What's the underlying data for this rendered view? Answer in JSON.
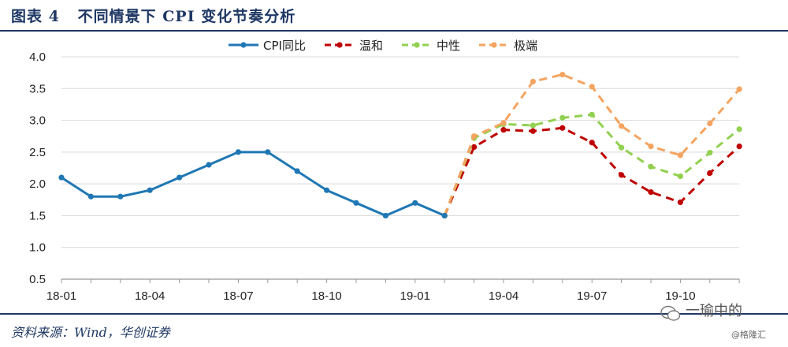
{
  "header": {
    "title": "图表 4   不同情景下 CPI 变化节奏分析"
  },
  "footer": {
    "source": "资料来源：Wind，华创证券"
  },
  "watermark": {
    "main": "一瑜中的",
    "small": "@格隆汇"
  },
  "chart_data": {
    "type": "line",
    "x_tick_labels": [
      "18-01",
      "18-04",
      "18-07",
      "18-10",
      "19-01",
      "19-04",
      "19-07",
      "19-10"
    ],
    "ylim": [
      0.5,
      4.0
    ],
    "y_ticks": [
      "0.5",
      "1.0",
      "1.5",
      "2.0",
      "2.5",
      "3.0",
      "3.5",
      "4.0"
    ],
    "grid": true,
    "legend_position": "top-center",
    "series": [
      {
        "name": "CPI同比",
        "color": "#1f77b4",
        "dashed": false,
        "x": [
          "2018-01",
          "2018-02",
          "2018-03",
          "2018-04",
          "2018-05",
          "2018-06",
          "2018-07",
          "2018-08",
          "2018-09",
          "2018-10",
          "2018-11",
          "2018-12",
          "2019-01",
          "2019-02"
        ],
        "values": [
          2.1,
          1.8,
          1.8,
          1.9,
          2.1,
          2.3,
          2.5,
          2.5,
          2.2,
          1.9,
          1.7,
          1.5,
          1.7,
          1.5
        ]
      },
      {
        "name": "温和",
        "color": "#c00000",
        "dashed": true,
        "x": [
          "2019-02",
          "2019-03",
          "2019-04",
          "2019-05",
          "2019-06",
          "2019-07",
          "2019-08",
          "2019-09",
          "2019-10",
          "2019-11",
          "2019-12"
        ],
        "values": [
          1.5,
          2.58,
          2.85,
          2.83,
          2.88,
          2.65,
          2.14,
          1.87,
          1.71,
          2.17,
          2.59
        ]
      },
      {
        "name": "中性",
        "color": "#92d050",
        "dashed": true,
        "x": [
          "2019-02",
          "2019-03",
          "2019-04",
          "2019-05",
          "2019-06",
          "2019-07",
          "2019-08",
          "2019-09",
          "2019-10",
          "2019-11",
          "2019-12"
        ],
        "values": [
          1.5,
          2.72,
          2.94,
          2.92,
          3.04,
          3.09,
          2.57,
          2.27,
          2.12,
          2.49,
          2.86
        ]
      },
      {
        "name": "极端",
        "color": "#f4a460",
        "dashed": true,
        "x": [
          "2019-02",
          "2019-03",
          "2019-04",
          "2019-05",
          "2019-06",
          "2019-07",
          "2019-08",
          "2019-09",
          "2019-10",
          "2019-11",
          "2019-12"
        ],
        "values": [
          1.5,
          2.75,
          2.96,
          3.61,
          3.72,
          3.53,
          2.91,
          2.59,
          2.45,
          2.95,
          3.49
        ]
      }
    ]
  }
}
